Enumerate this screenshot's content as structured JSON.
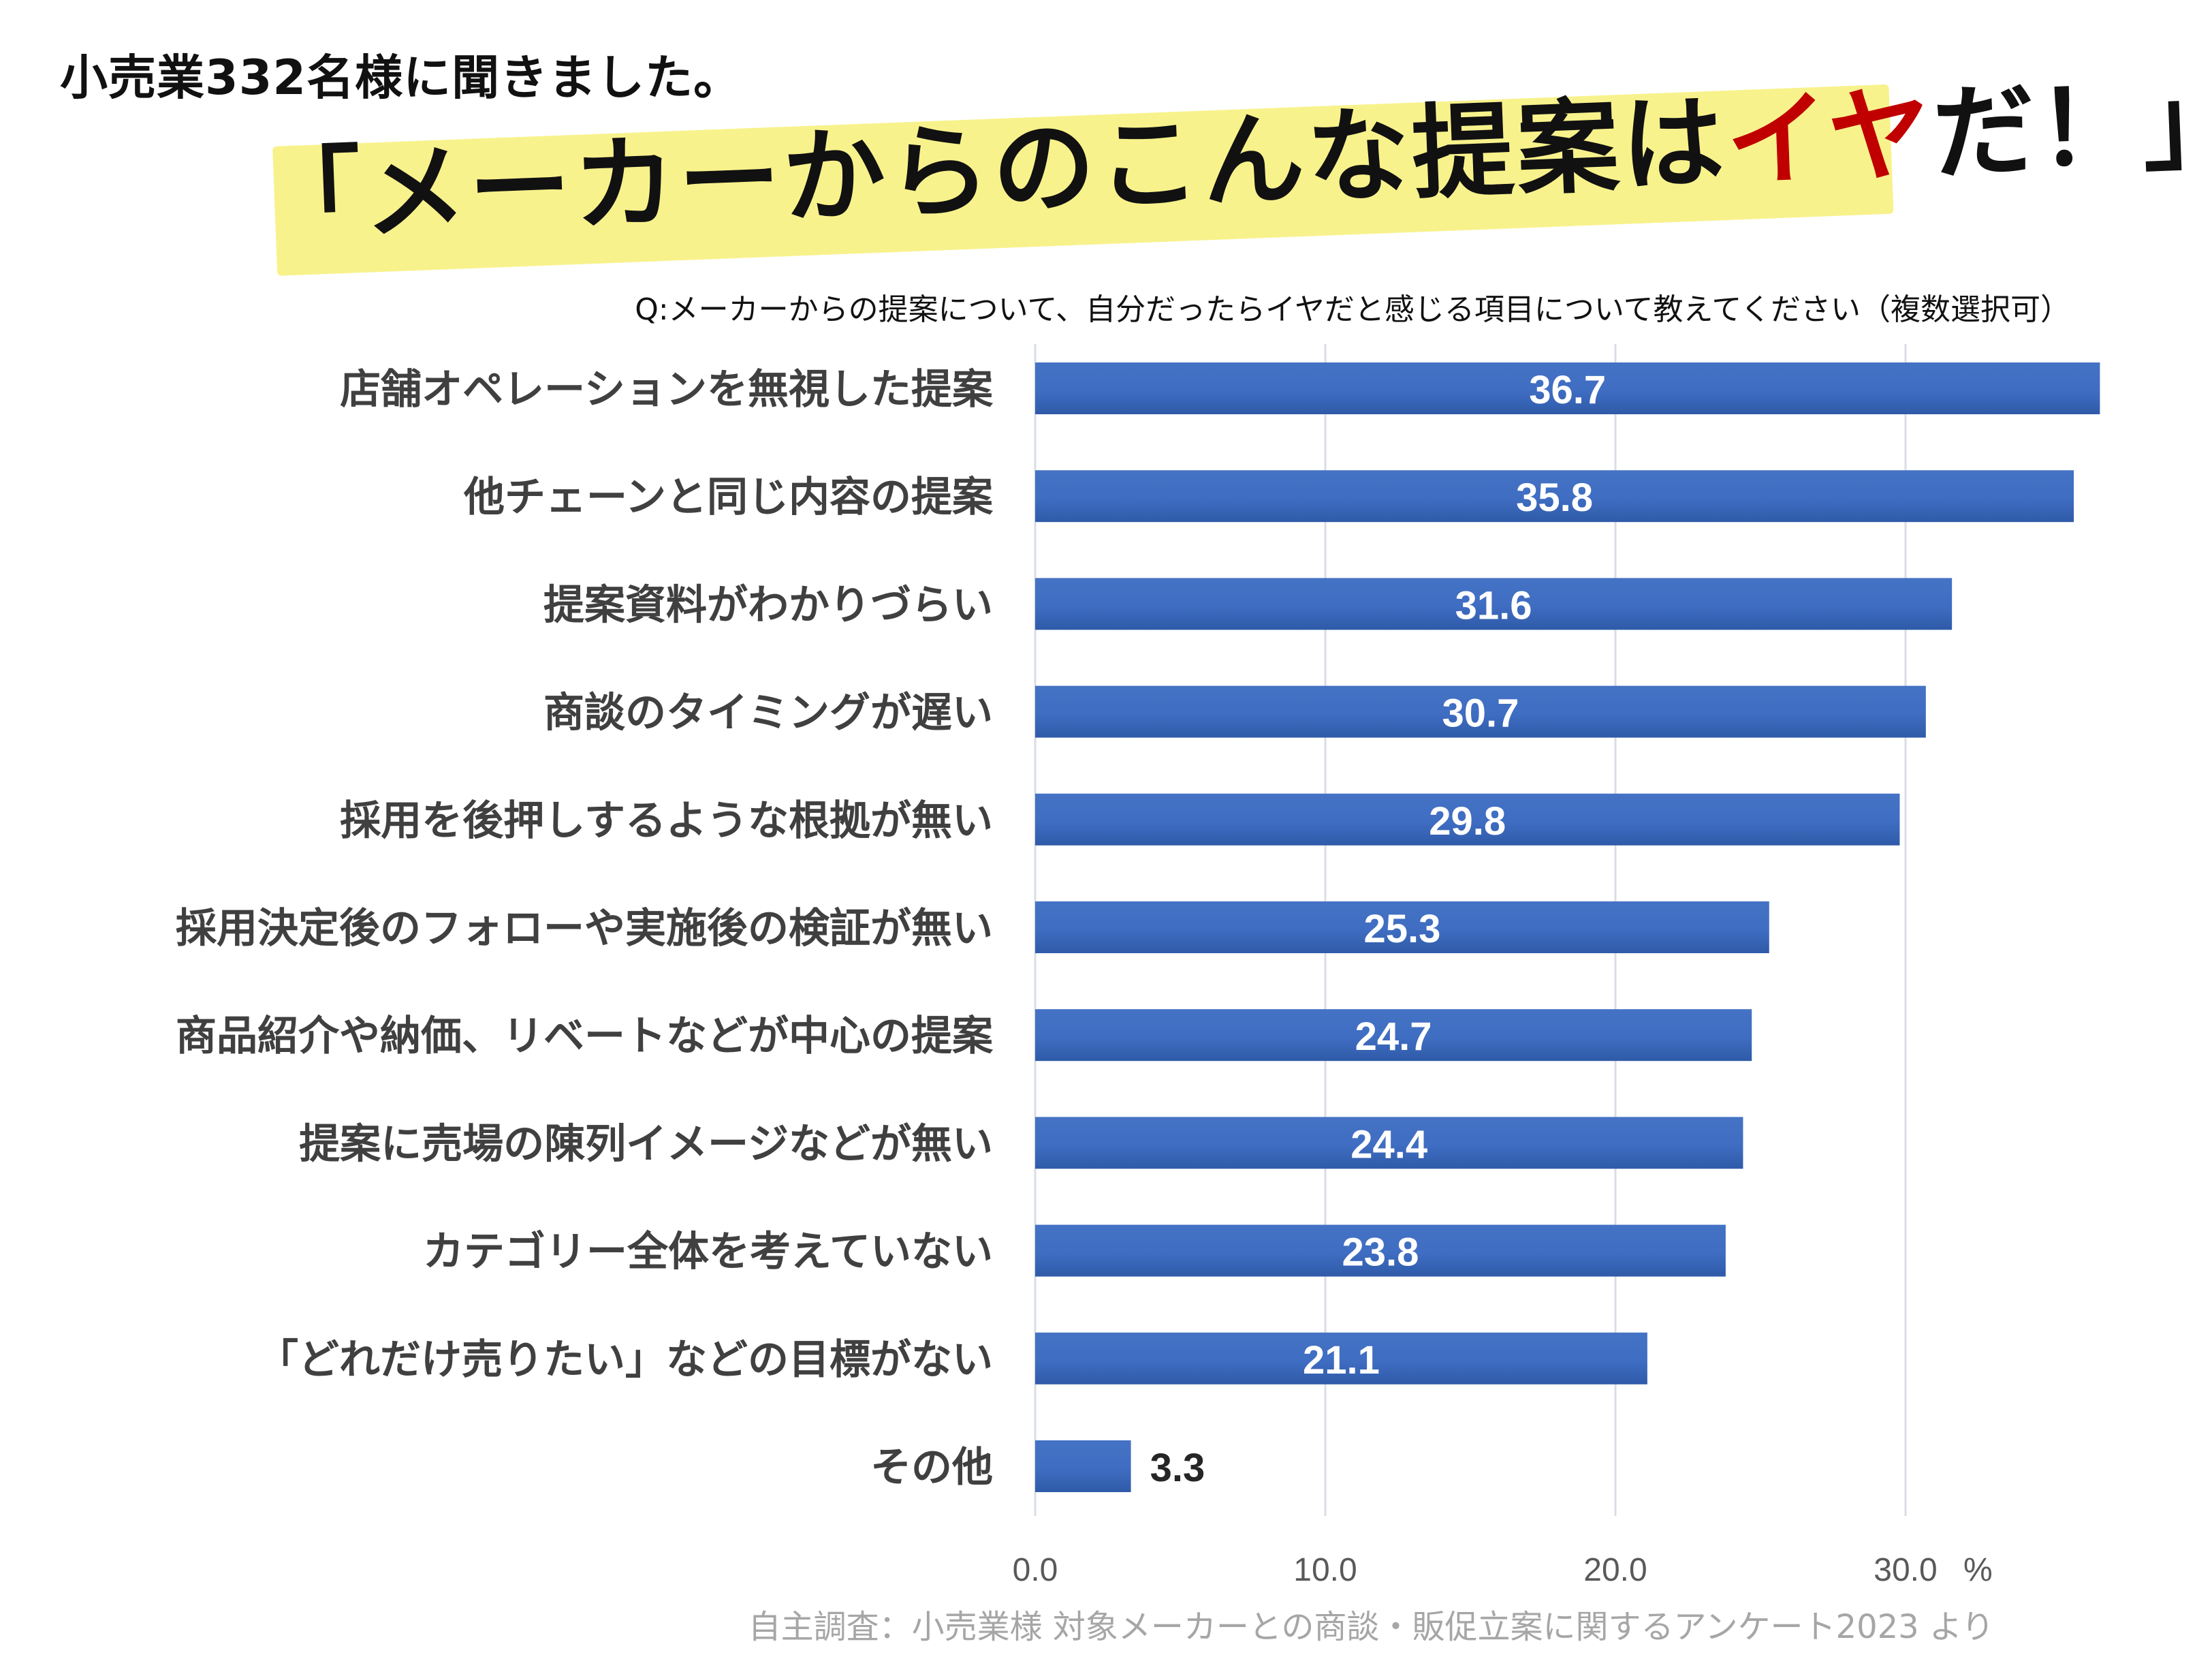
{
  "header": {
    "survey_line": "小売業332名様に聞きました。",
    "title_open": "「メーカーからのこんな提案は",
    "title_accent": "イヤ",
    "title_close": "だ！」"
  },
  "chart_data": {
    "type": "bar",
    "orientation": "horizontal",
    "title": "Q:メーカーからの提案について、自分だったらイヤだと感じる項目について教えてください（複数選択可）",
    "categories": [
      "店舗オペレーションを無視した提案",
      "他チェーンと同じ内容の提案",
      "提案資料がわかりづらい",
      "商談のタイミングが遅い",
      "採用を後押しするような根拠が無い",
      "採用決定後のフォローや実施後の検証が無い",
      "商品紹介や納価、リベートなどが中心の提案",
      "提案に売場の陳列イメージなどが無い",
      "カテゴリー全体を考えていない",
      "「どれだけ売りたい」などの目標がない",
      "その他"
    ],
    "values": [
      36.7,
      35.8,
      31.6,
      30.7,
      29.8,
      25.3,
      24.7,
      24.4,
      23.8,
      21.1,
      3.3
    ],
    "value_labels": [
      "36.7",
      "35.8",
      "31.6",
      "30.7",
      "29.8",
      "25.3",
      "24.7",
      "24.4",
      "23.8",
      "21.1",
      "3.3"
    ],
    "xlim": [
      0,
      37
    ],
    "xticks": [
      0,
      10,
      20,
      30
    ],
    "xtick_labels": [
      "0.0",
      "10.0",
      "20.0",
      "30.0"
    ],
    "unit": "%",
    "grid": true,
    "bar_color": "#4472c4",
    "accent_color": "#c00000"
  },
  "footer": {
    "source": "自主調査：小売業様 対象メーカーとの商談・販促立案に関するアンケート2023 より"
  }
}
